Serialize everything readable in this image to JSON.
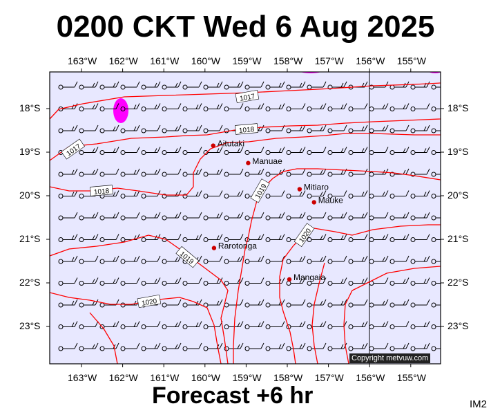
{
  "title": "0200 CKT Wed 6 Aug 2025",
  "subtitle": "Forecast +6 hr",
  "product_code": "IM2",
  "copyright": "Copyright metvuw.com",
  "lon_ticks": [
    "163°W",
    "162°W",
    "161°W",
    "160°W",
    "159°W",
    "158°W",
    "157°W",
    "156°W",
    "155°W"
  ],
  "lat_ticks": [
    "18°S",
    "19°S",
    "20°S",
    "21°S",
    "22°S",
    "23°S"
  ],
  "places": [
    {
      "name": "Aitutaki",
      "lon": -159.8,
      "lat": -18.85
    },
    {
      "name": "Manuae",
      "lon": -158.95,
      "lat": -19.25
    },
    {
      "name": "Mitiaro",
      "lon": -157.7,
      "lat": -19.85
    },
    {
      "name": "Mauke",
      "lon": -157.35,
      "lat": -20.15
    },
    {
      "name": "Rarotonga",
      "lon": -159.78,
      "lat": -21.2
    },
    {
      "name": "Mangaia",
      "lon": -157.95,
      "lat": -21.92
    }
  ],
  "isobar_labels": [
    "1017",
    "1018",
    "1017",
    "1018",
    "1019",
    "1020",
    "1019",
    "1020"
  ],
  "colors": {
    "ocean": "#e8e8ff",
    "isobar": "#ff0000",
    "town": "#cc0000",
    "rain": "#ff00ff"
  }
}
